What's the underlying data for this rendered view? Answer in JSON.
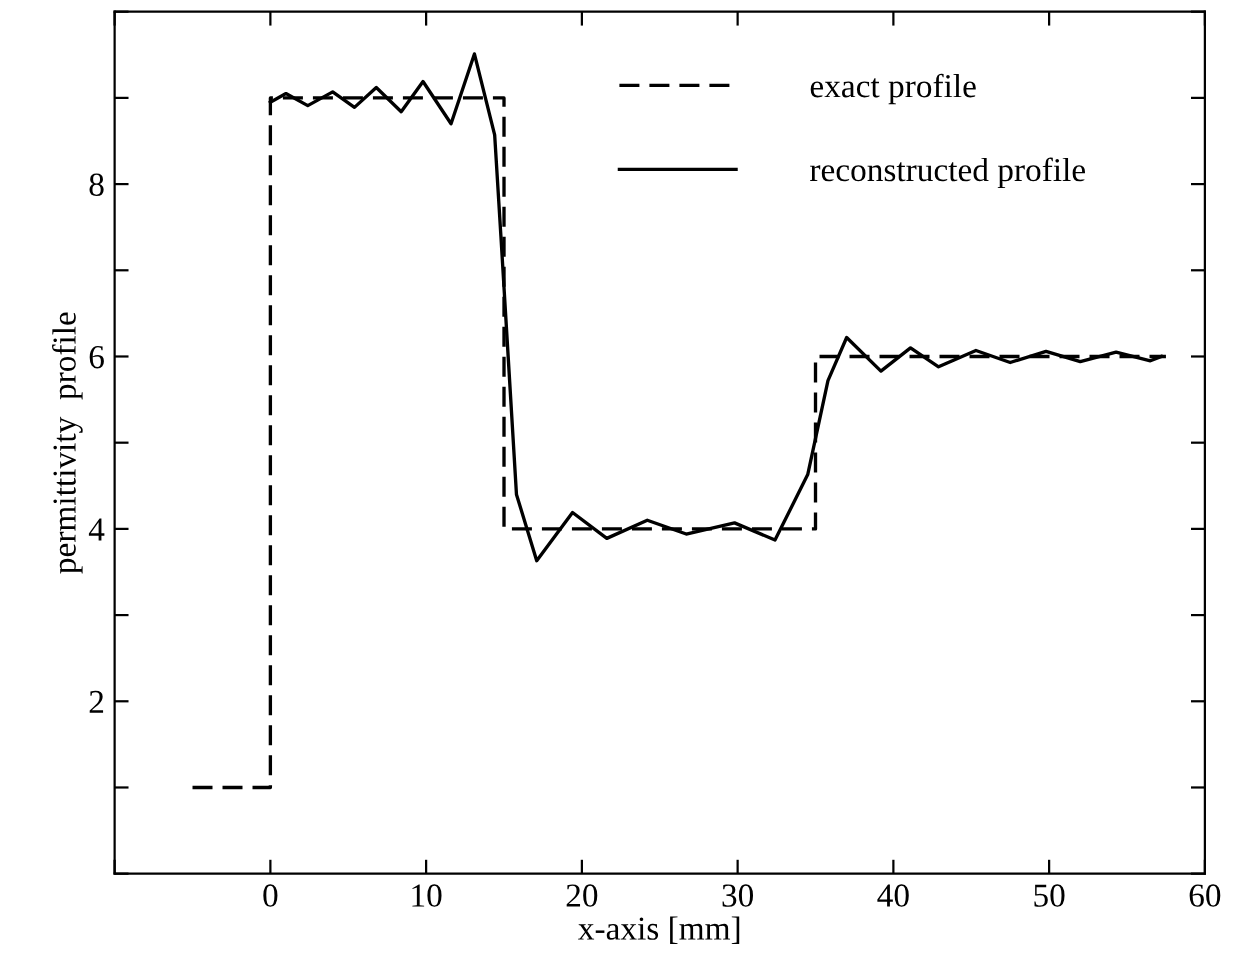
{
  "chart_data": {
    "type": "line",
    "xlabel": "x-axis [mm]",
    "ylabel": "permittivity  profile",
    "xlim": [
      -10,
      60
    ],
    "ylim": [
      0,
      10
    ],
    "xticks": [
      {
        "value": -10,
        "label": null
      },
      0,
      10,
      20,
      30,
      40,
      50,
      60
    ],
    "yticks": [
      {
        "value": 0,
        "label": null
      },
      {
        "value": 1,
        "label": null
      },
      2,
      {
        "value": 3,
        "label": null
      },
      4,
      {
        "value": 5,
        "label": null
      },
      6,
      {
        "value": 7,
        "label": null
      },
      8,
      {
        "value": 9,
        "label": null
      },
      {
        "value": 10,
        "label": null
      }
    ],
    "grid": false,
    "legend": "top right",
    "marker": "none",
    "series": [
      {
        "name": "exact profile",
        "type": "step",
        "color": "#000000",
        "line_style": "dashed",
        "x": [
          -5,
          0,
          15,
          35,
          57.5
        ],
        "values": [
          1,
          9,
          4,
          6,
          6
        ]
      },
      {
        "name": "reconstructed profile",
        "color": "#000000",
        "line_style": "solid",
        "x": [
          0,
          1.0,
          2.4,
          4.0,
          5.4,
          6.8,
          8.4,
          9.8,
          11.6,
          13.1,
          14.4,
          14.8,
          15.8,
          17.1,
          19.4,
          21.6,
          24.2,
          26.7,
          29.8,
          32.4,
          34.5,
          35.8,
          37.0,
          39.2,
          41.1,
          42.9,
          45.3,
          47.5,
          49.8,
          52.0,
          54.3,
          56.5,
          57.2
        ],
        "values": [
          8.95,
          9.05,
          8.91,
          9.07,
          8.89,
          9.12,
          8.84,
          9.19,
          8.7,
          9.51,
          8.57,
          7.4,
          4.4,
          3.63,
          4.19,
          3.89,
          4.1,
          3.94,
          4.07,
          3.87,
          4.63,
          5.72,
          6.22,
          5.83,
          6.1,
          5.88,
          6.07,
          5.93,
          6.06,
          5.94,
          6.05,
          5.95,
          6.0
        ]
      }
    ]
  }
}
